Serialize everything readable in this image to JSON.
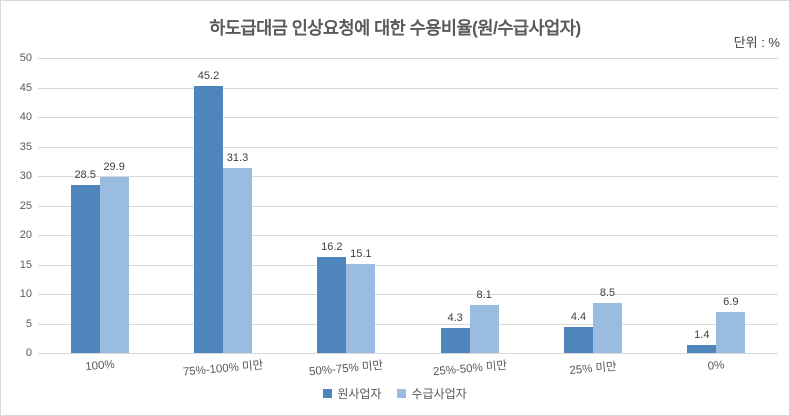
{
  "chart_data": {
    "type": "bar",
    "title": "하도급대금 인상요청에 대한 수용비율(원/수급사업자)",
    "unit_label": "단위 : %",
    "categories": [
      "100%",
      "75%-100% 미만",
      "50%-75% 미만",
      "25%-50% 미만",
      "25% 미만",
      "0%"
    ],
    "series": [
      {
        "name": "원사업자",
        "color": "#4E86BC",
        "values": [
          28.5,
          45.2,
          16.2,
          4.3,
          4.4,
          1.4
        ]
      },
      {
        "name": "수급사업자",
        "color": "#9ABCE0",
        "values": [
          29.9,
          31.3,
          15.1,
          8.1,
          8.5,
          6.9
        ]
      }
    ],
    "xlabel": "",
    "ylabel": "",
    "ylim": [
      0,
      50
    ],
    "y_ticks": [
      0,
      5,
      10,
      15,
      20,
      25,
      30,
      35,
      40,
      45,
      50
    ],
    "grid": true,
    "legend_position": "bottom",
    "data_labels": true
  },
  "colors": {
    "bar_primary": "#4E86BC",
    "bar_secondary": "#9ABCE0",
    "title_text": "#595959",
    "axis_text": "#595959",
    "data_label_text": "#404040",
    "gridline": "#D9D9D9",
    "chart_border": "#D9D9D9",
    "background": "#FFFFFF"
  }
}
